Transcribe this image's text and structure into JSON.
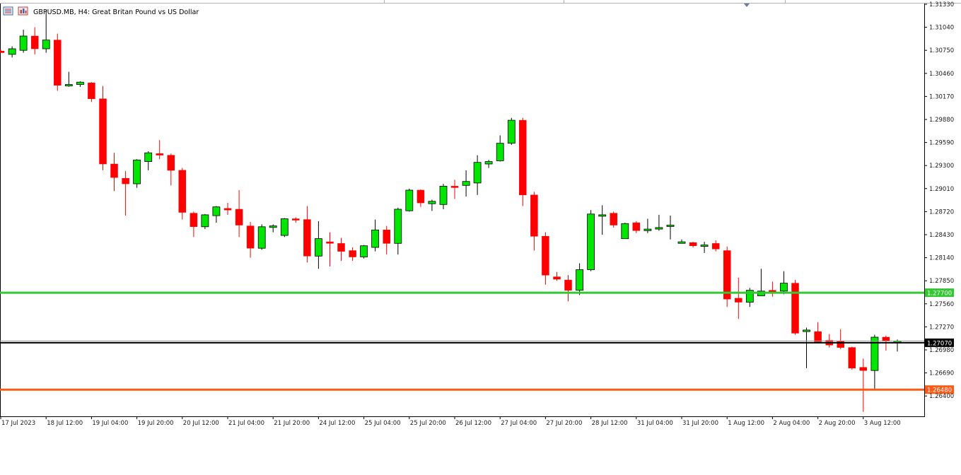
{
  "window": {
    "title": "GBPUSD.MB, H4:  Great Britan Pound vs US Dollar",
    "icons": [
      "trade-list-icon",
      "chart-window-icon"
    ]
  },
  "chart_data": {
    "type": "candlestick",
    "symbol": "GBPUSD.MB",
    "timeframe": "H4",
    "title": "GBPUSD.MB, H4:  Great Britan Pound vs US Dollar",
    "ylim": [
      1.2616,
      1.3133
    ],
    "grid": false,
    "colors": {
      "bull": "#00e600",
      "bear": "#ff0000",
      "wick_bull": "#000000",
      "wick_bear": "#ff0000",
      "resistance": "#32c832",
      "support": "#ff5a14",
      "current": "#000000"
    },
    "y_ticks": [
      "1.31330",
      "1.31040",
      "1.30750",
      "1.30460",
      "1.30170",
      "1.29880",
      "1.29590",
      "1.29300",
      "1.29010",
      "1.28720",
      "1.28430",
      "1.28140",
      "1.27850",
      "1.27560",
      "1.27270",
      "1.26980",
      "1.26690",
      "1.26400"
    ],
    "y_tick_values": [
      1.3133,
      1.3104,
      1.3075,
      1.3046,
      1.3017,
      1.2988,
      1.2959,
      1.293,
      1.2901,
      1.2872,
      1.2843,
      1.2814,
      1.2785,
      1.2756,
      1.2727,
      1.2698,
      1.2669,
      1.264
    ],
    "x_ticks": [
      "17 Jul 2023",
      "18 Jul 12:00",
      "19 Jul 04:00",
      "19 Jul 20:00",
      "20 Jul 12:00",
      "21 Jul 04:00",
      "21 Jul 20:00",
      "24 Jul 12:00",
      "25 Jul 04:00",
      "25 Jul 20:00",
      "26 Jul 12:00",
      "27 Jul 04:00",
      "27 Jul 20:00",
      "28 Jul 12:00",
      "31 Jul 04:00",
      "31 Jul 20:00",
      "1 Aug 12:00",
      "2 Aug 04:00",
      "2 Aug 20:00",
      "3 Aug 12:00"
    ],
    "x_tick_index": [
      0,
      4,
      8,
      12,
      16,
      20,
      24,
      28,
      32,
      36,
      40,
      44,
      48,
      52,
      56,
      60,
      64,
      68,
      72,
      76
    ],
    "horizontal_lines": [
      {
        "name": "resistance",
        "value": 1.277,
        "label": "1.27700",
        "color": "#32c832"
      },
      {
        "name": "current-price",
        "value": 1.2707,
        "label": "1.27070",
        "color": "#000000"
      },
      {
        "name": "support",
        "value": 1.2648,
        "label": "1.26480",
        "color": "#ff5a14"
      }
    ],
    "candles": [
      [
        1.3074,
        1.3076,
        1.3072,
        1.3072
      ],
      [
        1.307,
        1.308,
        1.3066,
        1.3077
      ],
      [
        1.3075,
        1.3101,
        1.3072,
        1.3093
      ],
      [
        1.3093,
        1.3104,
        1.307,
        1.3077
      ],
      [
        1.3077,
        1.3126,
        1.3072,
        1.3088
      ],
      [
        1.3088,
        1.3096,
        1.3024,
        1.3031
      ],
      [
        1.3031,
        1.3048,
        1.3029,
        1.3032
      ],
      [
        1.3032,
        1.3036,
        1.3029,
        1.3035
      ],
      [
        1.3034,
        1.3035,
        1.301,
        1.3014
      ],
      [
        1.3014,
        1.303,
        1.2924,
        1.2932
      ],
      [
        1.2932,
        1.2946,
        1.2898,
        1.2915
      ],
      [
        1.2914,
        1.2923,
        1.2867,
        1.2907
      ],
      [
        1.2907,
        1.2938,
        1.2902,
        1.2937
      ],
      [
        1.2935,
        1.2948,
        1.2924,
        1.2946
      ],
      [
        1.2945,
        1.2962,
        1.2938,
        1.2943
      ],
      [
        1.2943,
        1.2945,
        1.2905,
        1.2924
      ],
      [
        1.2924,
        1.2927,
        1.2862,
        1.2871
      ],
      [
        1.287,
        1.2872,
        1.284,
        1.2853
      ],
      [
        1.2853,
        1.2869,
        1.285,
        1.2868
      ],
      [
        1.2867,
        1.2879,
        1.2858,
        1.2878
      ],
      [
        1.2876,
        1.2883,
        1.2868,
        1.2874
      ],
      [
        1.2875,
        1.2899,
        1.284,
        1.2855
      ],
      [
        1.2854,
        1.2859,
        1.2814,
        1.2826
      ],
      [
        1.2826,
        1.2856,
        1.2824,
        1.2853
      ],
      [
        1.2852,
        1.2856,
        1.2846,
        1.2854
      ],
      [
        1.2842,
        1.2864,
        1.284,
        1.2863
      ],
      [
        1.2863,
        1.2865,
        1.2858,
        1.2862
      ],
      [
        1.2862,
        1.2879,
        1.2808,
        1.2816
      ],
      [
        1.2816,
        1.286,
        1.28,
        1.2838
      ],
      [
        1.2834,
        1.2846,
        1.2803,
        1.2832
      ],
      [
        1.2832,
        1.2839,
        1.281,
        1.2822
      ],
      [
        1.2823,
        1.2827,
        1.281,
        1.2815
      ],
      [
        1.2815,
        1.283,
        1.2813,
        1.2829
      ],
      [
        1.2827,
        1.2862,
        1.2822,
        1.2849
      ],
      [
        1.2849,
        1.2854,
        1.2818,
        1.2832
      ],
      [
        1.2832,
        1.2877,
        1.2818,
        1.2875
      ],
      [
        1.2873,
        1.2901,
        1.2872,
        1.2899
      ],
      [
        1.2899,
        1.29,
        1.2878,
        1.2883
      ],
      [
        1.2882,
        1.2887,
        1.2873,
        1.2885
      ],
      [
        1.2881,
        1.2907,
        1.2875,
        1.2904
      ],
      [
        1.2904,
        1.2912,
        1.2888,
        1.2903
      ],
      [
        1.2905,
        1.2924,
        1.2891,
        1.291
      ],
      [
        1.2908,
        1.2943,
        1.2893,
        1.2934
      ],
      [
        1.2932,
        1.2937,
        1.2927,
        1.2935
      ],
      [
        1.2936,
        1.2968,
        1.2935,
        1.2958
      ],
      [
        1.2958,
        1.299,
        1.2956,
        1.2987
      ],
      [
        1.2987,
        1.299,
        1.2879,
        1.2893
      ],
      [
        1.2893,
        1.2897,
        1.2823,
        1.2841
      ],
      [
        1.2841,
        1.2846,
        1.278,
        1.2792
      ],
      [
        1.279,
        1.2796,
        1.2785,
        1.2787
      ],
      [
        1.2786,
        1.2792,
        1.2759,
        1.2773
      ],
      [
        1.2773,
        1.2807,
        1.2767,
        1.2799
      ],
      [
        1.2799,
        1.2874,
        1.2797,
        1.2869
      ],
      [
        1.2868,
        1.288,
        1.2843,
        1.2868
      ],
      [
        1.287,
        1.2872,
        1.2852,
        1.2855
      ],
      [
        1.2838,
        1.2858,
        1.2838,
        1.2857
      ],
      [
        1.2858,
        1.286,
        1.2845,
        1.2848
      ],
      [
        1.2848,
        1.2863,
        1.2845,
        1.285
      ],
      [
        1.285,
        1.2868,
        1.2848,
        1.2852
      ],
      [
        1.2855,
        1.2867,
        1.2837,
        1.2855
      ],
      [
        1.2832,
        1.2837,
        1.2833,
        1.2834
      ],
      [
        1.2833,
        1.2834,
        1.2827,
        1.2829
      ],
      [
        1.283,
        1.2834,
        1.282,
        1.283
      ],
      [
        1.2832,
        1.2836,
        1.2822,
        1.2825
      ],
      [
        1.2823,
        1.2828,
        1.2752,
        1.2762
      ],
      [
        1.2763,
        1.2789,
        1.2737,
        1.2758
      ],
      [
        1.2758,
        1.2776,
        1.2752,
        1.2773
      ],
      [
        1.2766,
        1.28,
        1.2766,
        1.2772
      ],
      [
        1.2773,
        1.2784,
        1.2765,
        1.277
      ],
      [
        1.2772,
        1.2797,
        1.2768,
        1.2782
      ],
      [
        1.2782,
        1.2786,
        1.2717,
        1.2719
      ],
      [
        1.2721,
        1.2726,
        1.2675,
        1.2723
      ],
      [
        1.2721,
        1.2733,
        1.2709,
        1.2708
      ],
      [
        1.271,
        1.2718,
        1.2701,
        1.2704
      ],
      [
        1.2709,
        1.2724,
        1.2699,
        1.2701
      ],
      [
        1.2701,
        1.2702,
        1.2673,
        1.2675
      ],
      [
        1.2676,
        1.2687,
        1.262,
        1.2672
      ],
      [
        1.2672,
        1.2717,
        1.2648,
        1.2714
      ],
      [
        1.2714,
        1.2716,
        1.2697,
        1.2709
      ],
      [
        1.2707,
        1.2711,
        1.2696,
        1.2709
      ]
    ]
  }
}
